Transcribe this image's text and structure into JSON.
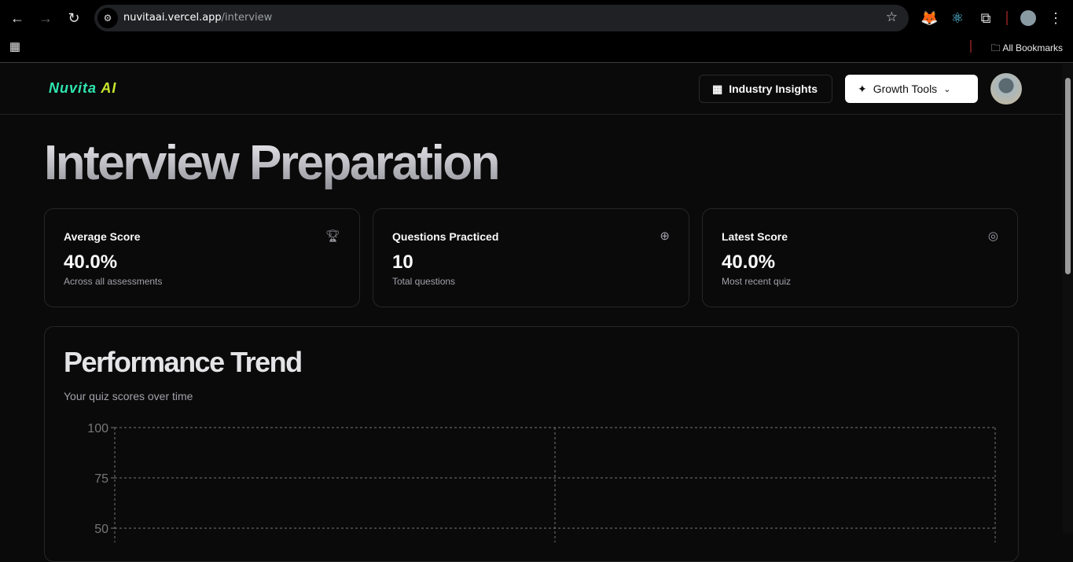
{
  "browser": {
    "url_host": "nuvitaai.vercel.app",
    "url_path": "/interview",
    "bookmarks_label": "All Bookmarks"
  },
  "header": {
    "logo_part1": "Nuvita",
    "logo_part2": "AI",
    "industry_insights": "Industry Insights",
    "growth_tools": "Growth Tools"
  },
  "page": {
    "title": "Interview Preparation"
  },
  "stats": [
    {
      "label": "Average Score",
      "value": "40.0%",
      "sub": "Across all assessments",
      "icon": "trophy-icon"
    },
    {
      "label": "Questions Practiced",
      "value": "10",
      "sub": "Total questions",
      "icon": "brain-icon"
    },
    {
      "label": "Latest Score",
      "value": "40.0%",
      "sub": "Most recent quiz",
      "icon": "target-icon"
    }
  ],
  "trend": {
    "title": "Performance Trend",
    "subtitle": "Your quiz scores over time"
  },
  "chart_data": {
    "type": "line",
    "ylim": [
      0,
      100
    ],
    "yticks": [
      "100",
      "75",
      "50"
    ],
    "grid": true,
    "series": []
  }
}
